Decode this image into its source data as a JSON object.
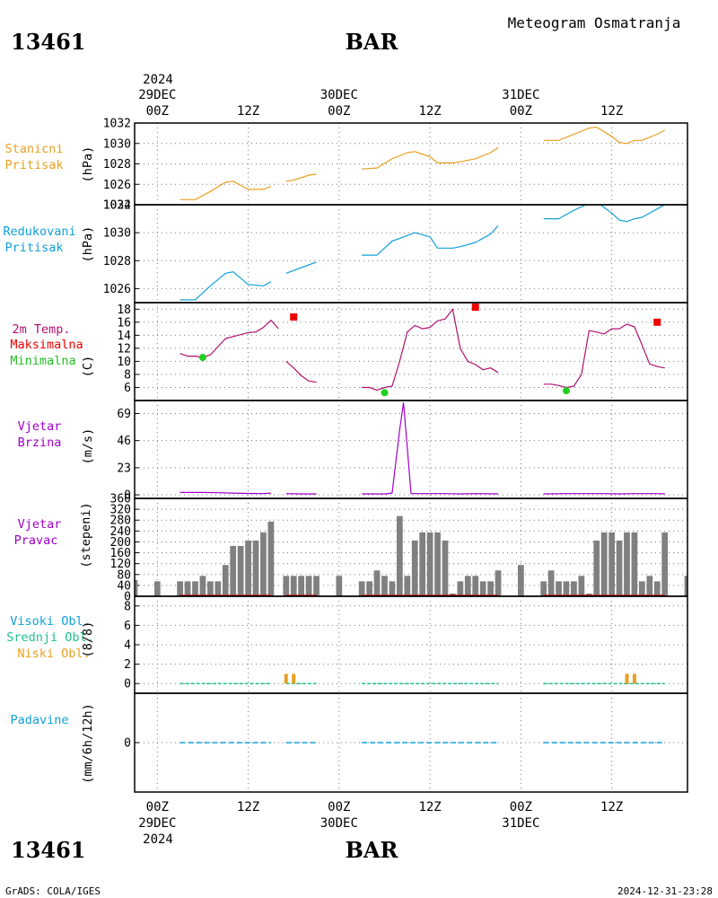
{
  "header": {
    "station_id": "13461",
    "station_name": "BAR",
    "product": "Meteogram Osmatranja"
  },
  "footer": {
    "credit": "GrADS: COLA/IGES",
    "timestamp": "2024-12-31-23:28"
  },
  "time_axis": {
    "top_year": "2024",
    "bottom_year": "2024",
    "ticks": [
      {
        "hour": 0,
        "label": "00Z",
        "date": "29DEC"
      },
      {
        "hour": 12,
        "label": "12Z",
        "date": ""
      },
      {
        "hour": 24,
        "label": "00Z",
        "date": "30DEC"
      },
      {
        "hour": 36,
        "label": "12Z",
        "date": ""
      },
      {
        "hour": 48,
        "label": "00Z",
        "date": "31DEC"
      },
      {
        "hour": 60,
        "label": "12Z",
        "date": ""
      }
    ]
  },
  "panel_labels": {
    "p1": {
      "line1": "Stanicni",
      "line2": "Pritisak",
      "unit": "(hPa)"
    },
    "p2": {
      "line1": "Redukovani",
      "line2": "Pritisak",
      "unit": "(hPa)"
    },
    "p3": {
      "line1": "2m Temp.",
      "line2": "Maksimalna",
      "line3": "Minimalna",
      "unit": "(C)"
    },
    "p4": {
      "line1": "Vjetar",
      "line2": "Brzina",
      "unit": "(m/s)"
    },
    "p5": {
      "line1": "Vjetar",
      "line2": "Pravac",
      "unit": "(stepeni)"
    },
    "p6": {
      "line1": "Visoki Obl.",
      "line2": "Srednji Obl.",
      "line3": "Niski Obl.",
      "unit": "(8/8)"
    },
    "p7": {
      "line1": "Padavine",
      "unit": "(mm/6h/12h)"
    }
  },
  "colors": {
    "station_pressure": "#e8a020",
    "reduced_pressure": "#10a0d8",
    "temperature": "#b0106e",
    "tmax": "#ee0000",
    "tmin": "#20d020",
    "wind_speed": "#a000c8",
    "wind_dir": "#808080",
    "wind_dir_base": "#cc1010",
    "high_cloud": "#10a0d8",
    "mid_cloud": "#20c090",
    "low_cloud": "#e8a020",
    "precip": "#10a0d8"
  },
  "chart_data": [
    {
      "type": "line",
      "name": "station_pressure",
      "x_unit": "hours since 29DEC 00Z",
      "xlim": [
        -3,
        70
      ],
      "ylim": [
        1024,
        1032
      ],
      "yticks": [
        1024,
        1026,
        1028,
        1030,
        1032
      ],
      "grid": true,
      "segments": [
        [
          [
            3,
            1024.5
          ],
          [
            5,
            1024.5
          ],
          [
            7,
            1025.3
          ],
          [
            9,
            1026.2
          ],
          [
            10,
            1026.3
          ],
          [
            12,
            1025.5
          ],
          [
            14,
            1025.5
          ],
          [
            15,
            1025.8
          ]
        ],
        [
          [
            17,
            1026.3
          ],
          [
            18,
            1026.4
          ],
          [
            20,
            1026.9
          ],
          [
            21,
            1027.0
          ]
        ],
        [
          [
            27,
            1027.5
          ],
          [
            29,
            1027.6
          ],
          [
            31,
            1028.5
          ],
          [
            33,
            1029.1
          ],
          [
            34,
            1029.2
          ],
          [
            36,
            1028.7
          ],
          [
            37,
            1028.1
          ],
          [
            39,
            1028.1
          ],
          [
            40,
            1028.2
          ],
          [
            42,
            1028.5
          ],
          [
            44,
            1029.1
          ],
          [
            45,
            1029.6
          ]
        ],
        [
          [
            51,
            1030.3
          ],
          [
            53,
            1030.3
          ],
          [
            55,
            1030.9
          ],
          [
            57,
            1031.5
          ],
          [
            58,
            1031.6
          ],
          [
            60,
            1030.7
          ],
          [
            61,
            1030.1
          ],
          [
            62,
            1030.0
          ],
          [
            63,
            1030.3
          ],
          [
            64,
            1030.3
          ],
          [
            66,
            1030.9
          ],
          [
            67,
            1031.3
          ]
        ]
      ]
    },
    {
      "type": "line",
      "name": "reduced_pressure",
      "x_unit": "hours since 29DEC 00Z",
      "xlim": [
        -3,
        70
      ],
      "ylim": [
        1025,
        1032
      ],
      "yticks": [
        1026,
        1028,
        1030,
        1032
      ],
      "grid": true,
      "segments": [
        [
          [
            3,
            1025.2
          ],
          [
            5,
            1025.2
          ],
          [
            7,
            1026.2
          ],
          [
            9,
            1027.1
          ],
          [
            10,
            1027.2
          ],
          [
            12,
            1026.3
          ],
          [
            14,
            1026.2
          ],
          [
            15,
            1026.5
          ]
        ],
        [
          [
            17,
            1027.1
          ],
          [
            18,
            1027.3
          ],
          [
            20,
            1027.7
          ],
          [
            21,
            1027.9
          ]
        ],
        [
          [
            27,
            1028.4
          ],
          [
            29,
            1028.4
          ],
          [
            31,
            1029.4
          ],
          [
            33,
            1029.8
          ],
          [
            34,
            1030.0
          ],
          [
            36,
            1029.7
          ],
          [
            37,
            1028.9
          ],
          [
            39,
            1028.9
          ],
          [
            40,
            1029.0
          ],
          [
            42,
            1029.3
          ],
          [
            44,
            1029.9
          ],
          [
            45,
            1030.5
          ]
        ],
        [
          [
            51,
            1031.0
          ],
          [
            53,
            1031.0
          ],
          [
            55,
            1031.6
          ],
          [
            57,
            1032.1
          ],
          [
            58,
            1032.2
          ],
          [
            60,
            1031.4
          ],
          [
            61,
            1030.9
          ],
          [
            62,
            1030.8
          ],
          [
            63,
            1031.0
          ],
          [
            64,
            1031.1
          ],
          [
            66,
            1031.7
          ],
          [
            67,
            1032.0
          ]
        ]
      ]
    },
    {
      "type": "line",
      "name": "temperature_2m",
      "x_unit": "hours since 29DEC 00Z",
      "xlim": [
        -3,
        70
      ],
      "ylim": [
        4,
        19
      ],
      "yticks": [
        6,
        8,
        10,
        12,
        14,
        16,
        18
      ],
      "grid": true,
      "segments": [
        [
          [
            3,
            11.2
          ],
          [
            4,
            10.8
          ],
          [
            5,
            10.8
          ],
          [
            6,
            10.6
          ],
          [
            7,
            11.0
          ],
          [
            9,
            13.5
          ],
          [
            10,
            13.8
          ],
          [
            12,
            14.4
          ],
          [
            13,
            14.5
          ],
          [
            14,
            15.2
          ],
          [
            15,
            16.3
          ],
          [
            16,
            15.0
          ]
        ],
        [
          [
            17,
            10.0
          ],
          [
            18,
            9.0
          ],
          [
            19,
            7.8
          ],
          [
            20,
            7.0
          ],
          [
            21,
            6.8
          ]
        ],
        [
          [
            27,
            6.0
          ],
          [
            28,
            6.0
          ],
          [
            29,
            5.6
          ],
          [
            30,
            6.0
          ],
          [
            31,
            6.2
          ],
          [
            32,
            10.0
          ],
          [
            33,
            14.5
          ],
          [
            34,
            15.5
          ],
          [
            35,
            15.0
          ],
          [
            36,
            15.2
          ],
          [
            37,
            16.2
          ],
          [
            38,
            16.5
          ],
          [
            39,
            18.0
          ],
          [
            40,
            12.0
          ],
          [
            41,
            10.0
          ],
          [
            42,
            9.5
          ],
          [
            43,
            8.7
          ],
          [
            44,
            9.0
          ],
          [
            45,
            8.3
          ]
        ],
        [
          [
            51,
            6.5
          ],
          [
            52,
            6.5
          ],
          [
            53,
            6.3
          ],
          [
            54,
            6.0
          ],
          [
            55,
            6.2
          ],
          [
            56,
            8.0
          ],
          [
            57,
            14.7
          ],
          [
            58,
            14.5
          ],
          [
            59,
            14.2
          ],
          [
            60,
            15.0
          ],
          [
            61,
            15.0
          ],
          [
            62,
            15.7
          ],
          [
            63,
            15.3
          ],
          [
            64,
            12.5
          ],
          [
            65,
            9.6
          ],
          [
            66,
            9.2
          ],
          [
            67,
            9.0
          ]
        ]
      ],
      "tmax_points": [
        [
          18,
          16.8
        ],
        [
          42,
          18.3
        ],
        [
          66,
          16.0
        ]
      ],
      "tmin_points": [
        [
          6,
          10.6
        ],
        [
          30,
          5.2
        ],
        [
          54,
          5.5
        ]
      ]
    },
    {
      "type": "line",
      "name": "wind_speed",
      "x_unit": "hours since 29DEC 00Z",
      "xlim": [
        -3,
        70
      ],
      "ylim": [
        -3,
        80
      ],
      "yticks": [
        0,
        23,
        46,
        69
      ],
      "grid": true,
      "segments": [
        [
          [
            3,
            2.0
          ],
          [
            6,
            2.0
          ],
          [
            8,
            1.8
          ],
          [
            10,
            1.5
          ],
          [
            12,
            1.2
          ],
          [
            14,
            1.0
          ],
          [
            15,
            1.5
          ]
        ],
        [
          [
            17,
            1.0
          ],
          [
            19,
            0.8
          ],
          [
            21,
            0.8
          ]
        ],
        [
          [
            27,
            0.8
          ],
          [
            30,
            0.8
          ],
          [
            31,
            1.5
          ],
          [
            32,
            55.0
          ],
          [
            32.5,
            78.0
          ],
          [
            33,
            40.0
          ],
          [
            33.5,
            1.0
          ],
          [
            35,
            1.0
          ],
          [
            38,
            1.0
          ],
          [
            40,
            0.8
          ],
          [
            42,
            1.0
          ],
          [
            45,
            0.8
          ]
        ],
        [
          [
            51,
            0.8
          ],
          [
            54,
            1.0
          ],
          [
            57,
            1.0
          ],
          [
            59,
            1.0
          ],
          [
            61,
            0.8
          ],
          [
            63,
            1.0
          ],
          [
            66,
            1.0
          ],
          [
            67,
            0.8
          ]
        ]
      ]
    },
    {
      "type": "bar",
      "name": "wind_direction",
      "x_unit": "hours since 29DEC 00Z",
      "xlim": [
        -3,
        70
      ],
      "ylim": [
        0,
        360
      ],
      "yticks": [
        0,
        40,
        80,
        120,
        160,
        200,
        240,
        280,
        320,
        360
      ],
      "grid": true,
      "bars": [
        [
          -3,
          60
        ],
        [
          0,
          55
        ],
        [
          3,
          55
        ],
        [
          4,
          55
        ],
        [
          5,
          55
        ],
        [
          6,
          75
        ],
        [
          7,
          55
        ],
        [
          8,
          55
        ],
        [
          9,
          115
        ],
        [
          10,
          185
        ],
        [
          11,
          185
        ],
        [
          12,
          205
        ],
        [
          13,
          205
        ],
        [
          14,
          235
        ],
        [
          15,
          275
        ],
        [
          17,
          75
        ],
        [
          18,
          75
        ],
        [
          19,
          75
        ],
        [
          20,
          75
        ],
        [
          21,
          75
        ],
        [
          24,
          75
        ],
        [
          27,
          55
        ],
        [
          28,
          55
        ],
        [
          29,
          95
        ],
        [
          30,
          75
        ],
        [
          31,
          55
        ],
        [
          32,
          295
        ],
        [
          33,
          75
        ],
        [
          34,
          205
        ],
        [
          35,
          235
        ],
        [
          36,
          235
        ],
        [
          37,
          235
        ],
        [
          38,
          205
        ],
        [
          39,
          10
        ],
        [
          40,
          55
        ],
        [
          41,
          75
        ],
        [
          42,
          75
        ],
        [
          43,
          55
        ],
        [
          44,
          55
        ],
        [
          45,
          95
        ],
        [
          48,
          115
        ],
        [
          51,
          55
        ],
        [
          52,
          95
        ],
        [
          53,
          55
        ],
        [
          54,
          55
        ],
        [
          55,
          55
        ],
        [
          56,
          75
        ],
        [
          57,
          10
        ],
        [
          58,
          205
        ],
        [
          59,
          235
        ],
        [
          60,
          235
        ],
        [
          61,
          205
        ],
        [
          62,
          235
        ],
        [
          63,
          235
        ],
        [
          64,
          55
        ],
        [
          65,
          75
        ],
        [
          66,
          55
        ],
        [
          67,
          235
        ],
        [
          70,
          75
        ]
      ],
      "base_runs": [
        [
          3,
          15
        ],
        [
          17,
          21
        ],
        [
          27,
          45
        ],
        [
          51,
          67
        ]
      ]
    },
    {
      "type": "bar",
      "name": "cloud_cover",
      "x_unit": "hours since 29DEC 00Z",
      "xlim": [
        -3,
        70
      ],
      "ylim": [
        -1,
        9
      ],
      "yticks": [
        0,
        2,
        4,
        6,
        8
      ],
      "grid": true,
      "low_cloud_marks": [
        [
          17,
          1
        ],
        [
          18,
          1
        ],
        [
          62,
          1
        ],
        [
          63,
          1
        ]
      ],
      "zero_runs": [
        [
          3,
          15
        ],
        [
          17,
          21
        ],
        [
          27,
          45
        ],
        [
          51,
          67
        ]
      ]
    },
    {
      "type": "line",
      "name": "precipitation",
      "x_unit": "hours since 29DEC 00Z",
      "xlim": [
        -3,
        70
      ],
      "ylim": [
        -6,
        6
      ],
      "yticks": [
        0
      ],
      "grid": true,
      "zero_runs": [
        [
          3,
          15
        ],
        [
          17,
          21
        ],
        [
          27,
          45
        ],
        [
          51,
          67
        ]
      ]
    }
  ]
}
